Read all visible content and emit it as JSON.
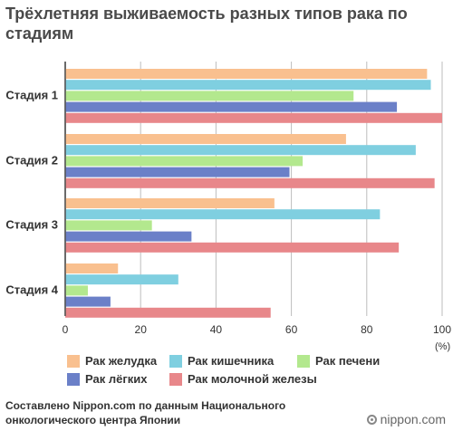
{
  "title": "Трёхлетняя выживаемость разных типов рака по стадиям",
  "source": "Составлено Nippon.com по данным Национального онкологического центра Японии",
  "logo": "nippon.com",
  "chart_data": {
    "type": "bar",
    "orientation": "horizontal",
    "categories": [
      "Стадия 1",
      "Стадия 2",
      "Стадия 3",
      "Стадия 4"
    ],
    "series": [
      {
        "name": "Рак желудка",
        "color": "#f9c08f",
        "values": [
          96,
          74.5,
          55.5,
          14
        ]
      },
      {
        "name": "Рак кишечника",
        "color": "#7fcfe0",
        "values": [
          97,
          93,
          83.5,
          30
        ]
      },
      {
        "name": "Рак печени",
        "color": "#b3e88e",
        "values": [
          76.5,
          63,
          23,
          6
        ]
      },
      {
        "name": "Рак лёгких",
        "color": "#6b80c8",
        "values": [
          88,
          59.5,
          33.5,
          12
        ]
      },
      {
        "name": "Рак молочной железы",
        "color": "#e8878a",
        "values": [
          100,
          98,
          88.5,
          54.5
        ]
      }
    ],
    "x_ticks": [
      "0",
      "20",
      "40",
      "60",
      "80",
      "100"
    ],
    "x_unit": "(%)",
    "xlim": [
      0,
      100
    ],
    "grid": true,
    "legend_position": "bottom"
  }
}
